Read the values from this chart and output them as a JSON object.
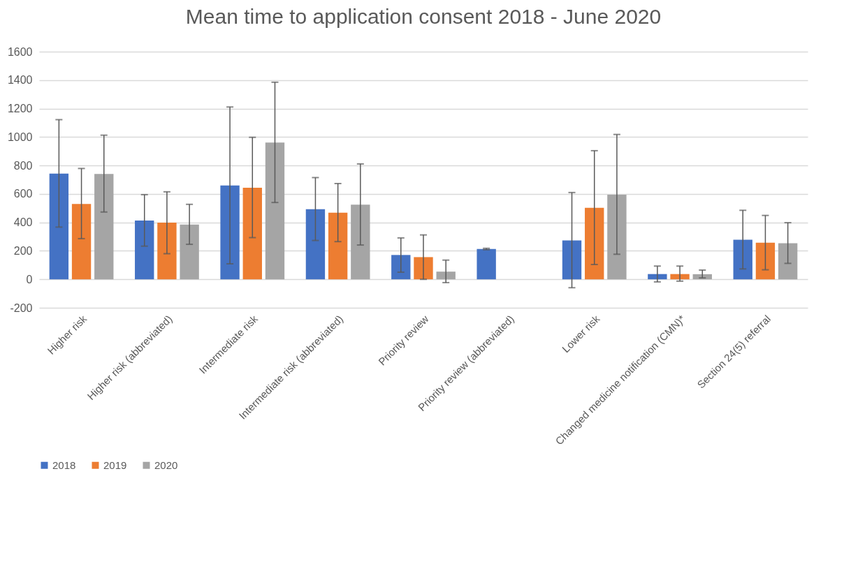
{
  "chart_data": {
    "type": "bar",
    "title": "Mean time to application consent 2018 - June 2020",
    "categories": [
      "Higher risk",
      "Higher risk (abbreviated)",
      "Intermediate risk",
      "Intermediate risk (abbreviated)",
      "Priority review",
      "Priority review (abbreviated)",
      "Lower risk",
      "Changed medicine notification (CMN)*",
      "Section 24(5) referral"
    ],
    "series": [
      {
        "name": "2018",
        "color": "#4472c4",
        "values": [
          743,
          413,
          659,
          493,
          171,
          213,
          273,
          37,
          278
        ],
        "errors": [
          [
            367,
            1122
          ],
          [
            233,
            595
          ],
          [
            109,
            1211
          ],
          [
            273,
            715
          ],
          [
            50,
            291
          ],
          [
            208,
            218
          ],
          [
            -59,
            610
          ],
          [
            -18,
            93
          ],
          [
            73,
            485
          ]
        ]
      },
      {
        "name": "2019",
        "color": "#ed7d31",
        "values": [
          530,
          398,
          644,
          468,
          156,
          null,
          502,
          37,
          257
        ],
        "errors": [
          [
            286,
            779
          ],
          [
            180,
            615
          ],
          [
            293,
            998
          ],
          [
            265,
            673
          ],
          [
            0,
            312
          ],
          null,
          [
            104,
            904
          ],
          [
            -13,
            93
          ],
          [
            67,
            449
          ]
        ]
      },
      {
        "name": "2020",
        "color": "#a5a5a5",
        "values": [
          741,
          385,
          961,
          525,
          54,
          null,
          595,
          36,
          254
        ],
        "errors": [
          [
            473,
            1013
          ],
          [
            246,
            527
          ],
          [
            540,
            1385
          ],
          [
            241,
            811
          ],
          [
            -23,
            135
          ],
          null,
          [
            176,
            1018
          ],
          [
            10,
            65
          ],
          [
            112,
            398
          ]
        ]
      }
    ],
    "ylim": [
      -200,
      1600
    ],
    "yticks": [
      -200,
      0,
      200,
      400,
      600,
      800,
      1000,
      1200,
      1400,
      1600
    ],
    "grid": "y",
    "legend": "bottom"
  }
}
